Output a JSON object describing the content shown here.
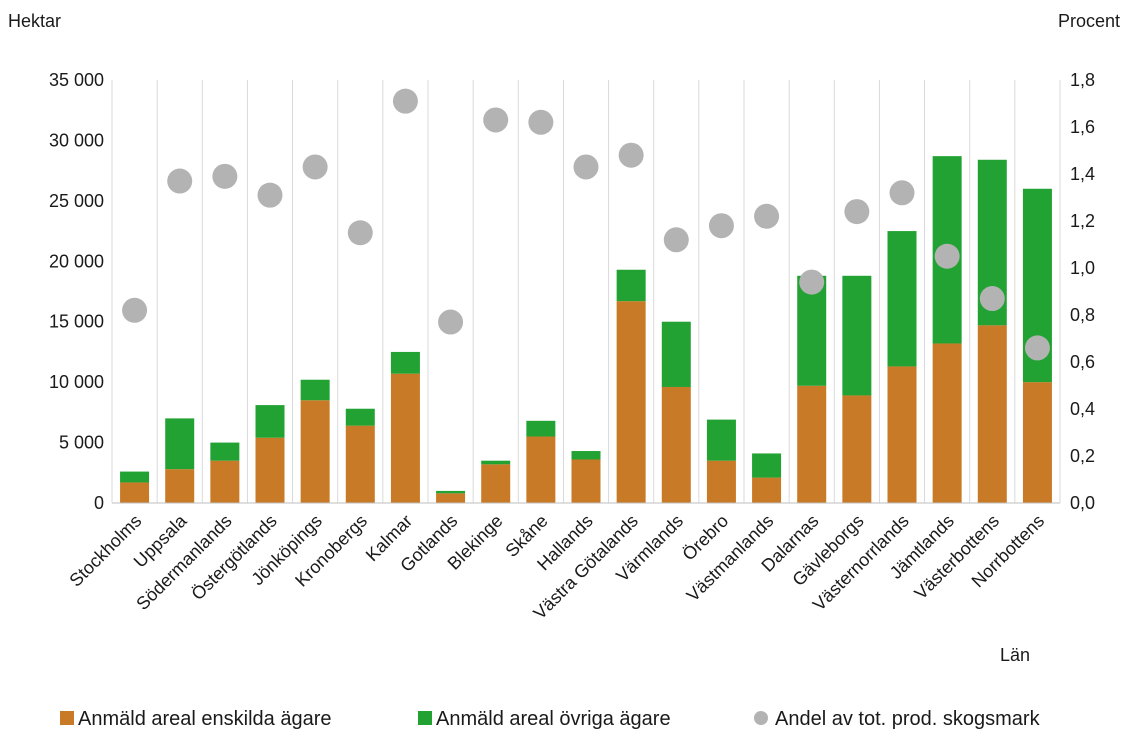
{
  "chart_data": {
    "type": "bar",
    "stacked": true,
    "title": "",
    "xlabel": "Län",
    "ylabel": "Hektar",
    "y2label": "Procent",
    "ylim": [
      0,
      35000
    ],
    "y2lim": [
      0,
      1.8
    ],
    "yticks": [
      "0",
      "5 000",
      "10 000",
      "15 000",
      "20 000",
      "25 000",
      "30 000",
      "35 000"
    ],
    "y2ticks": [
      "0,0",
      "0,2",
      "0,4",
      "0,6",
      "0,8",
      "1,0",
      "1,2",
      "1,4",
      "1,6",
      "1,8"
    ],
    "grid": "vertical",
    "legend_position": "bottom",
    "categories": [
      "Stockholms",
      "Uppsala",
      "Södermanlands",
      "Östergötlands",
      "Jönköpings",
      "Kronobergs",
      "Kalmar",
      "Gotlands",
      "Blekinge",
      "Skåne",
      "Hallands",
      "Västra Götalands",
      "Värmlands",
      "Örebro",
      "Västmanlands",
      "Dalarnas",
      "Gävleborgs",
      "Västernorrlands",
      "Jämtlands",
      "Västerbottens",
      "Norrbottens"
    ],
    "series": [
      {
        "name": "Anmäld areal enskilda ägare",
        "axis": "left",
        "kind": "bar",
        "color": "#C97A26",
        "values": [
          1700,
          2800,
          3500,
          5400,
          8500,
          6400,
          10700,
          800,
          3200,
          5500,
          3600,
          16700,
          9600,
          3500,
          2100,
          9700,
          8900,
          11300,
          13200,
          14700,
          10000
        ]
      },
      {
        "name": "Anmäld areal övriga ägare",
        "axis": "left",
        "kind": "bar",
        "color": "#22A233",
        "values": [
          900,
          4200,
          1500,
          2700,
          1700,
          1400,
          1800,
          200,
          300,
          1300,
          700,
          2600,
          5400,
          3400,
          2000,
          9100,
          9900,
          11200,
          15500,
          13700,
          16000
        ]
      },
      {
        "name": "Andel av tot. prod. skogsmark",
        "axis": "right",
        "kind": "scatter",
        "color": "#B3B3B3",
        "values": [
          0.82,
          1.37,
          1.39,
          1.31,
          1.43,
          1.15,
          1.71,
          0.77,
          1.63,
          1.62,
          1.43,
          1.48,
          1.12,
          1.18,
          1.22,
          0.94,
          1.24,
          1.32,
          1.05,
          0.87,
          0.66
        ]
      }
    ]
  }
}
